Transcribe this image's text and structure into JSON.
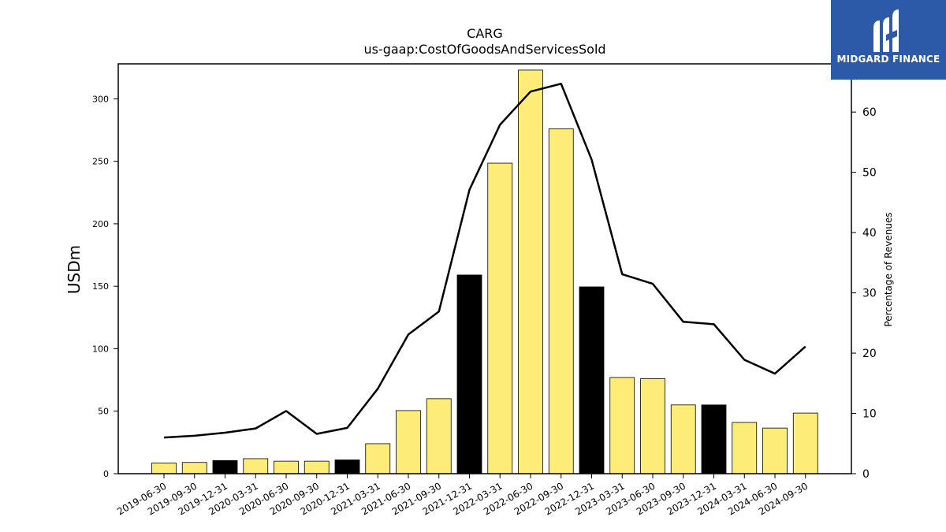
{
  "logo": {
    "text": "MIDGARD FINANCE",
    "icon": "midgard-logo-icon",
    "background": "#2d5aa8"
  },
  "chart_data": {
    "type": "bar",
    "title": "CARG",
    "subtitle": "us-gaap:CostOfGoodsAndServicesSold",
    "ylabel": "USDm",
    "ylabel_right": "Percentage of Revenues",
    "ylim": [
      0,
      328
    ],
    "ylim_right": [
      0,
      68
    ],
    "yticks": [
      0,
      50,
      100,
      150,
      200,
      250,
      300
    ],
    "yticks_right": [
      0,
      10,
      20,
      30,
      40,
      50,
      60
    ],
    "grid": false,
    "categories": [
      "2019-06-30",
      "2019-09-30",
      "2019-12-31",
      "2020-03-31",
      "2020-06-30",
      "2020-09-30",
      "2020-12-31",
      "2021-03-31",
      "2021-06-30",
      "2021-09-30",
      "2021-12-31",
      "2022-03-31",
      "2022-06-30",
      "2022-09-30",
      "2022-12-31",
      "2023-03-31",
      "2023-06-30",
      "2023-09-30",
      "2023-12-31",
      "2024-03-31",
      "2024-06-30",
      "2024-09-30"
    ],
    "series": [
      {
        "type": "bar",
        "axis": "left",
        "values": [
          8.5,
          9,
          10.5,
          12,
          10,
          10,
          11,
          24,
          50.5,
          60,
          159,
          248.5,
          323,
          276,
          149.5,
          77,
          76,
          55,
          55,
          41,
          36.5,
          48.5
        ],
        "colors": [
          "#fdec78",
          "#fdec78",
          "#000000",
          "#fdec78",
          "#fdec78",
          "#fdec78",
          "#000000",
          "#fdec78",
          "#fdec78",
          "#fdec78",
          "#000000",
          "#fdec78",
          "#fdec78",
          "#fdec78",
          "#000000",
          "#fdec78",
          "#fdec78",
          "#fdec78",
          "#000000",
          "#fdec78",
          "#fdec78",
          "#fdec78"
        ]
      },
      {
        "type": "line",
        "axis": "right",
        "color": "#000000",
        "values": [
          6.0,
          6.3,
          6.8,
          7.5,
          10.4,
          6.6,
          7.6,
          14.1,
          23.1,
          26.9,
          47.1,
          57.9,
          63.4,
          64.7,
          52.1,
          33.1,
          31.5,
          25.2,
          24.8,
          18.9,
          16.6,
          21.1
        ]
      }
    ]
  }
}
